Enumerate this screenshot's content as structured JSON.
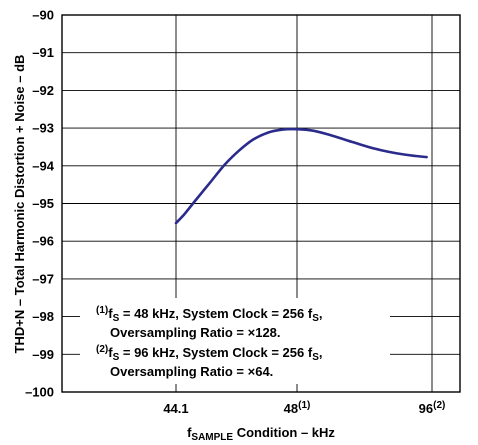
{
  "chart_data": {
    "type": "line",
    "ylabel": "THD+N – Total Harmonic Distortion + Noise – dB",
    "xlabel": {
      "main": "f",
      "sub": "SAMPLE",
      "rest": " Condition – kHz"
    },
    "ylim": [
      -100,
      -90
    ],
    "y_ticks": [
      "–90",
      "–91",
      "–92",
      "–93",
      "–94",
      "–95",
      "–96",
      "–97",
      "–98",
      "–99",
      "–100"
    ],
    "x_ticks": [
      {
        "label": "44.1",
        "sup": ""
      },
      {
        "label": "48",
        "sup": "(1)"
      },
      {
        "label": "96",
        "sup": "(2)"
      }
    ],
    "grid": true,
    "series": [
      {
        "color": "#2b2b8c",
        "points": [
          {
            "x": 0.0,
            "y": -95.52
          },
          {
            "x": 0.07,
            "y": -95.28
          },
          {
            "x": 0.16,
            "y": -94.92
          },
          {
            "x": 0.28,
            "y": -94.45
          },
          {
            "x": 0.4,
            "y": -93.98
          },
          {
            "x": 0.52,
            "y": -93.6
          },
          {
            "x": 0.64,
            "y": -93.3
          },
          {
            "x": 0.76,
            "y": -93.12
          },
          {
            "x": 0.88,
            "y": -93.04
          },
          {
            "x": 1.0,
            "y": -93.03
          },
          {
            "x": 1.12,
            "y": -93.07
          },
          {
            "x": 1.26,
            "y": -93.2
          },
          {
            "x": 1.42,
            "y": -93.38
          },
          {
            "x": 1.58,
            "y": -93.55
          },
          {
            "x": 1.74,
            "y": -93.67
          },
          {
            "x": 1.88,
            "y": -93.74
          },
          {
            "x": 1.96,
            "y": -93.77
          }
        ]
      }
    ],
    "annotations": [
      {
        "sup": "(1)",
        "parts": [
          "f",
          "S",
          " = 48 kHz, System Clock = 256 f",
          "S",
          ","
        ]
      },
      {
        "sup": "",
        "parts": [
          "Oversampling Ratio = ×128."
        ]
      },
      {
        "sup": "(2)",
        "parts": [
          "f",
          "S",
          " = 96 kHz, System Clock = 256 f",
          "S",
          ","
        ]
      },
      {
        "sup": "",
        "parts": [
          "Oversampling Ratio = ×64."
        ]
      }
    ]
  }
}
